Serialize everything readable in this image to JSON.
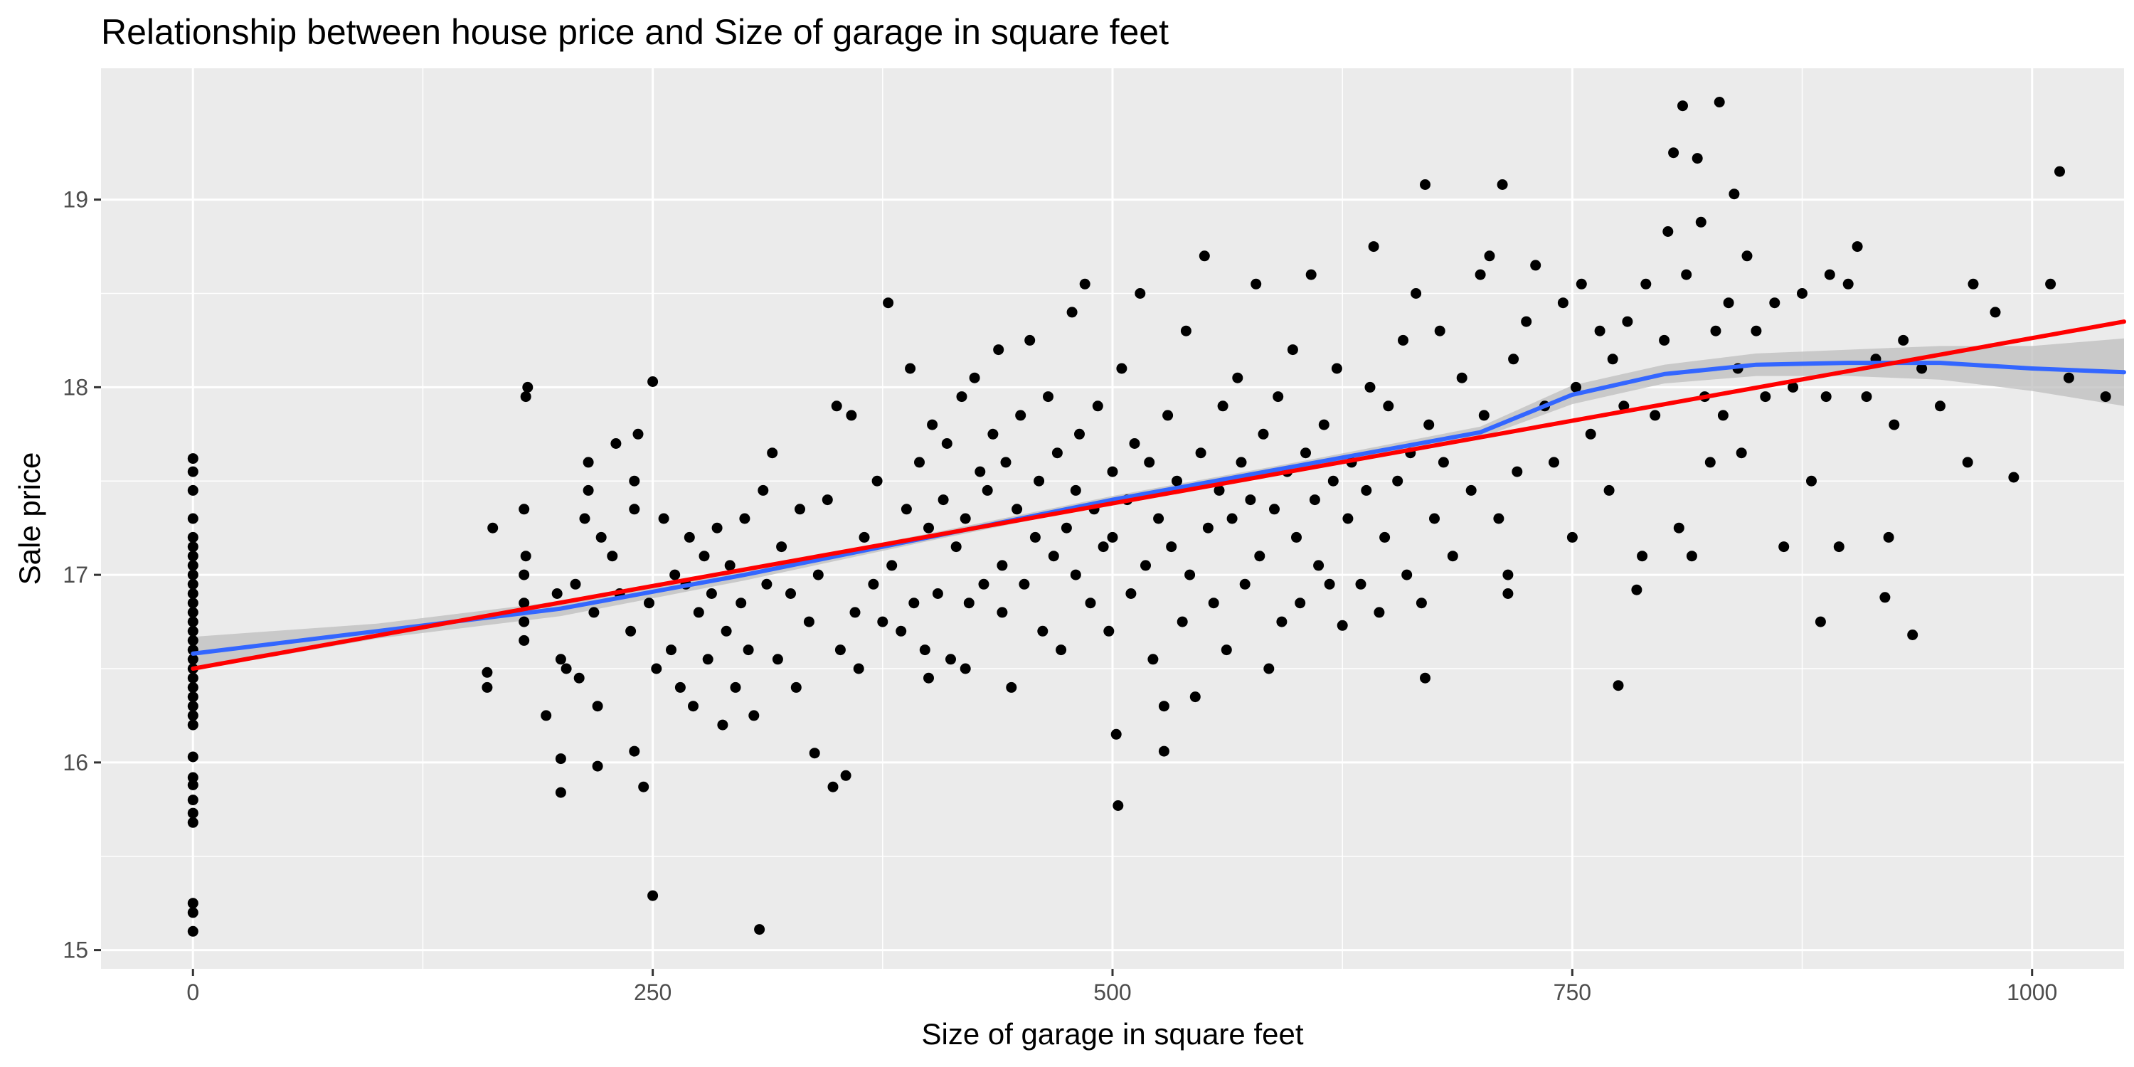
{
  "chart_data": {
    "type": "scatter",
    "title": "Relationship between house price and Size of garage in square feet",
    "xlabel": "Size of garage in square feet",
    "ylabel": "Sale price",
    "xlim": [
      -50,
      1050
    ],
    "ylim": [
      14.9,
      19.7
    ],
    "x_ticks": [
      0,
      250,
      500,
      750,
      1000
    ],
    "x_tick_labels": [
      "0",
      "250",
      "500",
      "750",
      "1000"
    ],
    "y_ticks": [
      15,
      16,
      17,
      18,
      19
    ],
    "y_tick_labels": [
      "15",
      "16",
      "17",
      "18",
      "19"
    ],
    "grid": true,
    "legend": "none",
    "colors": {
      "panel": "#ebebeb",
      "grid": "#ffffff",
      "points": "#000000",
      "loess": "#3366ff",
      "linear": "#ff0000",
      "ribbon": "#bdbdbd"
    },
    "points": [
      [
        0,
        15.1
      ],
      [
        0,
        15.2
      ],
      [
        0,
        15.25
      ],
      [
        0,
        15.68
      ],
      [
        0,
        15.73
      ],
      [
        0,
        15.8
      ],
      [
        0,
        15.88
      ],
      [
        0,
        15.92
      ],
      [
        0,
        16.03
      ],
      [
        0,
        16.2
      ],
      [
        0,
        16.25
      ],
      [
        0,
        16.3
      ],
      [
        0,
        16.35
      ],
      [
        0,
        16.4
      ],
      [
        0,
        16.45
      ],
      [
        0,
        16.5
      ],
      [
        0,
        16.55
      ],
      [
        0,
        16.6
      ],
      [
        0,
        16.65
      ],
      [
        0,
        16.7
      ],
      [
        0,
        16.75
      ],
      [
        0,
        16.8
      ],
      [
        0,
        16.85
      ],
      [
        0,
        16.9
      ],
      [
        0,
        16.95
      ],
      [
        0,
        17.0
      ],
      [
        0,
        17.05
      ],
      [
        0,
        17.1
      ],
      [
        0,
        17.15
      ],
      [
        0,
        17.2
      ],
      [
        0,
        17.3
      ],
      [
        0,
        17.45
      ],
      [
        0,
        17.55
      ],
      [
        0,
        17.62
      ],
      [
        160,
        16.4
      ],
      [
        160,
        16.48
      ],
      [
        163,
        17.25
      ],
      [
        180,
        17.0
      ],
      [
        181,
        17.1
      ],
      [
        180,
        17.35
      ],
      [
        181,
        17.95
      ],
      [
        182,
        18.0
      ],
      [
        180,
        16.65
      ],
      [
        180,
        16.75
      ],
      [
        180,
        16.85
      ],
      [
        192,
        16.25
      ],
      [
        198,
        16.9
      ],
      [
        200,
        15.84
      ],
      [
        200,
        16.02
      ],
      [
        200,
        16.55
      ],
      [
        203,
        16.5
      ],
      [
        208,
        16.95
      ],
      [
        210,
        16.45
      ],
      [
        213,
        17.3
      ],
      [
        215,
        17.45
      ],
      [
        215,
        17.6
      ],
      [
        218,
        16.8
      ],
      [
        220,
        15.98
      ],
      [
        220,
        16.3
      ],
      [
        222,
        17.2
      ],
      [
        228,
        17.1
      ],
      [
        230,
        17.7
      ],
      [
        232,
        16.9
      ],
      [
        238,
        16.7
      ],
      [
        240,
        17.35
      ],
      [
        240,
        17.5
      ],
      [
        240,
        16.06
      ],
      [
        242,
        17.75
      ],
      [
        245,
        15.87
      ],
      [
        248,
        16.85
      ],
      [
        250,
        15.29
      ],
      [
        250,
        18.03
      ],
      [
        252,
        16.5
      ],
      [
        256,
        17.3
      ],
      [
        260,
        16.6
      ],
      [
        262,
        17.0
      ],
      [
        265,
        16.4
      ],
      [
        268,
        16.95
      ],
      [
        270,
        17.2
      ],
      [
        272,
        16.3
      ],
      [
        275,
        16.8
      ],
      [
        278,
        17.1
      ],
      [
        280,
        16.55
      ],
      [
        282,
        16.9
      ],
      [
        285,
        17.25
      ],
      [
        288,
        16.2
      ],
      [
        290,
        16.7
      ],
      [
        292,
        17.05
      ],
      [
        295,
        16.4
      ],
      [
        298,
        16.85
      ],
      [
        300,
        17.3
      ],
      [
        302,
        16.6
      ],
      [
        305,
        16.25
      ],
      [
        308,
        15.11
      ],
      [
        310,
        17.45
      ],
      [
        312,
        16.95
      ],
      [
        315,
        17.65
      ],
      [
        318,
        16.55
      ],
      [
        320,
        17.15
      ],
      [
        325,
        16.9
      ],
      [
        328,
        16.4
      ],
      [
        330,
        17.35
      ],
      [
        335,
        16.75
      ],
      [
        338,
        16.05
      ],
      [
        340,
        17.0
      ],
      [
        345,
        17.4
      ],
      [
        348,
        15.87
      ],
      [
        350,
        17.9
      ],
      [
        352,
        16.6
      ],
      [
        355,
        15.93
      ],
      [
        358,
        17.85
      ],
      [
        360,
        16.8
      ],
      [
        362,
        16.5
      ],
      [
        365,
        17.2
      ],
      [
        370,
        16.95
      ],
      [
        372,
        17.5
      ],
      [
        375,
        16.75
      ],
      [
        378,
        18.45
      ],
      [
        380,
        17.05
      ],
      [
        385,
        16.7
      ],
      [
        388,
        17.35
      ],
      [
        390,
        18.1
      ],
      [
        392,
        16.85
      ],
      [
        395,
        17.6
      ],
      [
        398,
        16.6
      ],
      [
        400,
        17.25
      ],
      [
        400,
        16.45
      ],
      [
        402,
        17.8
      ],
      [
        405,
        16.9
      ],
      [
        408,
        17.4
      ],
      [
        410,
        17.7
      ],
      [
        412,
        16.55
      ],
      [
        415,
        17.15
      ],
      [
        418,
        17.95
      ],
      [
        420,
        17.3
      ],
      [
        420,
        16.5
      ],
      [
        422,
        16.85
      ],
      [
        425,
        18.05
      ],
      [
        428,
        17.55
      ],
      [
        430,
        16.95
      ],
      [
        432,
        17.45
      ],
      [
        435,
        17.75
      ],
      [
        438,
        18.2
      ],
      [
        440,
        16.8
      ],
      [
        440,
        17.05
      ],
      [
        442,
        17.6
      ],
      [
        445,
        16.4
      ],
      [
        448,
        17.35
      ],
      [
        450,
        17.85
      ],
      [
        452,
        16.95
      ],
      [
        455,
        18.25
      ],
      [
        458,
        17.2
      ],
      [
        460,
        17.5
      ],
      [
        462,
        16.7
      ],
      [
        465,
        17.95
      ],
      [
        468,
        17.1
      ],
      [
        470,
        17.65
      ],
      [
        472,
        16.6
      ],
      [
        475,
        17.25
      ],
      [
        478,
        18.4
      ],
      [
        480,
        17.0
      ],
      [
        480,
        17.45
      ],
      [
        482,
        17.75
      ],
      [
        485,
        18.55
      ],
      [
        488,
        16.85
      ],
      [
        490,
        17.35
      ],
      [
        492,
        17.9
      ],
      [
        495,
        17.15
      ],
      [
        498,
        16.7
      ],
      [
        500,
        17.55
      ],
      [
        500,
        17.2
      ],
      [
        502,
        16.15
      ],
      [
        503,
        15.77
      ],
      [
        505,
        18.1
      ],
      [
        508,
        17.4
      ],
      [
        510,
        16.9
      ],
      [
        512,
        17.7
      ],
      [
        515,
        18.5
      ],
      [
        518,
        17.05
      ],
      [
        520,
        17.6
      ],
      [
        522,
        16.55
      ],
      [
        525,
        17.3
      ],
      [
        528,
        16.06
      ],
      [
        528,
        16.3
      ],
      [
        530,
        17.85
      ],
      [
        532,
        17.15
      ],
      [
        535,
        17.5
      ],
      [
        538,
        16.75
      ],
      [
        540,
        18.3
      ],
      [
        542,
        17.0
      ],
      [
        545,
        16.35
      ],
      [
        548,
        17.65
      ],
      [
        550,
        18.7
      ],
      [
        552,
        17.25
      ],
      [
        555,
        16.85
      ],
      [
        558,
        17.45
      ],
      [
        560,
        17.9
      ],
      [
        562,
        16.6
      ],
      [
        565,
        17.3
      ],
      [
        568,
        18.05
      ],
      [
        570,
        17.6
      ],
      [
        572,
        16.95
      ],
      [
        575,
        17.4
      ],
      [
        578,
        18.55
      ],
      [
        580,
        17.1
      ],
      [
        582,
        17.75
      ],
      [
        585,
        16.5
      ],
      [
        588,
        17.35
      ],
      [
        590,
        17.95
      ],
      [
        592,
        16.75
      ],
      [
        595,
        17.55
      ],
      [
        598,
        18.2
      ],
      [
        600,
        17.2
      ],
      [
        602,
        16.85
      ],
      [
        605,
        17.65
      ],
      [
        608,
        18.6
      ],
      [
        610,
        17.4
      ],
      [
        612,
        17.05
      ],
      [
        615,
        17.8
      ],
      [
        618,
        16.95
      ],
      [
        620,
        17.5
      ],
      [
        622,
        18.1
      ],
      [
        625,
        16.73
      ],
      [
        628,
        17.3
      ],
      [
        630,
        17.6
      ],
      [
        635,
        16.95
      ],
      [
        638,
        17.45
      ],
      [
        640,
        18.0
      ],
      [
        642,
        18.75
      ],
      [
        645,
        16.8
      ],
      [
        648,
        17.2
      ],
      [
        650,
        17.9
      ],
      [
        655,
        17.5
      ],
      [
        658,
        18.25
      ],
      [
        660,
        17.0
      ],
      [
        662,
        17.65
      ],
      [
        665,
        18.5
      ],
      [
        668,
        16.85
      ],
      [
        670,
        19.08
      ],
      [
        670,
        16.45
      ],
      [
        672,
        17.8
      ],
      [
        675,
        17.3
      ],
      [
        678,
        18.3
      ],
      [
        680,
        17.6
      ],
      [
        685,
        17.1
      ],
      [
        690,
        18.05
      ],
      [
        695,
        17.45
      ],
      [
        700,
        18.6
      ],
      [
        702,
        17.85
      ],
      [
        705,
        18.7
      ],
      [
        710,
        17.3
      ],
      [
        712,
        19.08
      ],
      [
        715,
        16.9
      ],
      [
        715,
        17.0
      ],
      [
        718,
        18.15
      ],
      [
        720,
        17.55
      ],
      [
        725,
        18.35
      ],
      [
        730,
        18.65
      ],
      [
        735,
        17.9
      ],
      [
        740,
        17.6
      ],
      [
        745,
        18.45
      ],
      [
        750,
        17.2
      ],
      [
        752,
        18.0
      ],
      [
        755,
        18.55
      ],
      [
        760,
        17.75
      ],
      [
        765,
        18.3
      ],
      [
        770,
        17.45
      ],
      [
        772,
        18.15
      ],
      [
        775,
        16.41
      ],
      [
        778,
        17.9
      ],
      [
        780,
        18.35
      ],
      [
        785,
        16.92
      ],
      [
        788,
        17.1
      ],
      [
        790,
        18.55
      ],
      [
        795,
        17.85
      ],
      [
        800,
        18.25
      ],
      [
        802,
        18.83
      ],
      [
        805,
        19.25
      ],
      [
        808,
        17.25
      ],
      [
        810,
        19.5
      ],
      [
        812,
        18.6
      ],
      [
        815,
        17.1
      ],
      [
        818,
        19.22
      ],
      [
        820,
        18.88
      ],
      [
        822,
        17.95
      ],
      [
        825,
        17.6
      ],
      [
        828,
        18.3
      ],
      [
        830,
        19.52
      ],
      [
        832,
        17.85
      ],
      [
        835,
        18.45
      ],
      [
        838,
        19.03
      ],
      [
        840,
        18.1
      ],
      [
        842,
        17.65
      ],
      [
        845,
        18.7
      ],
      [
        850,
        18.3
      ],
      [
        855,
        17.95
      ],
      [
        860,
        18.45
      ],
      [
        865,
        17.15
      ],
      [
        870,
        18.0
      ],
      [
        875,
        18.5
      ],
      [
        880,
        17.5
      ],
      [
        885,
        16.75
      ],
      [
        888,
        17.95
      ],
      [
        890,
        18.6
      ],
      [
        895,
        17.15
      ],
      [
        900,
        18.55
      ],
      [
        905,
        18.75
      ],
      [
        910,
        17.95
      ],
      [
        915,
        18.15
      ],
      [
        920,
        16.88
      ],
      [
        922,
        17.2
      ],
      [
        925,
        17.8
      ],
      [
        930,
        18.25
      ],
      [
        935,
        16.68
      ],
      [
        940,
        18.1
      ],
      [
        950,
        17.9
      ],
      [
        965,
        17.6
      ],
      [
        968,
        18.55
      ],
      [
        980,
        18.4
      ],
      [
        990,
        17.52
      ],
      [
        1010,
        18.55
      ],
      [
        1015,
        19.15
      ],
      [
        1020,
        18.05
      ],
      [
        1040,
        17.95
      ]
    ],
    "series": [
      {
        "x": [
          0,
          100,
          200,
          300,
          400,
          500,
          600,
          700,
          750,
          800,
          850,
          900,
          950,
          1000,
          1050
        ],
        "y": [
          16.58,
          16.7,
          16.82,
          17.0,
          17.2,
          17.4,
          17.58,
          17.76,
          17.96,
          18.07,
          18.12,
          18.13,
          18.13,
          18.1,
          18.08
        ]
      },
      {
        "x": [
          0,
          1050
        ],
        "y": [
          16.5,
          18.35
        ]
      }
    ],
    "ribbon": {
      "x": [
        0,
        100,
        200,
        300,
        400,
        500,
        600,
        700,
        750,
        800,
        850,
        900,
        950,
        1000,
        1050
      ],
      "lower": [
        16.49,
        16.66,
        16.78,
        16.97,
        17.18,
        17.38,
        17.56,
        17.73,
        17.91,
        18.02,
        18.06,
        18.06,
        18.04,
        17.98,
        17.9
      ],
      "upper": [
        16.67,
        16.74,
        16.86,
        17.03,
        17.22,
        17.42,
        17.6,
        17.79,
        18.01,
        18.12,
        18.18,
        18.2,
        18.22,
        18.22,
        18.26
      ]
    }
  }
}
